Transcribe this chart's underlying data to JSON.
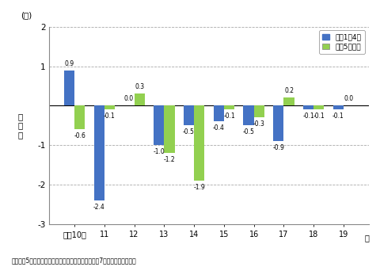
{
  "years": [
    "平成10年",
    "11",
    "12",
    "13",
    "14",
    "15",
    "16",
    "17",
    "18",
    "19"
  ],
  "blue_values": [
    0.9,
    -2.4,
    0.0,
    -1.0,
    -0.5,
    -0.4,
    -0.5,
    -0.9,
    -0.1,
    -0.1
  ],
  "green_values": [
    -0.6,
    -0.1,
    0.3,
    -1.2,
    -1.9,
    -0.1,
    -0.3,
    0.2,
    -0.1,
    0.0
  ],
  "blue_color": "#4472C4",
  "green_color": "#92D050",
  "blue_label": "規樯1～4人",
  "green_label": "規樯5人以上",
  "ylabel": "前\n年\n比",
  "ylabel2": "(％)",
  "xlabel_suffix": "年",
  "ylim_min": -3,
  "ylim_max": 2,
  "yticks": [
    -3,
    -2,
    -1,
    0,
    1,
    2
  ],
  "footnote": "注：規樯5人以上は、毎月勤労統計調査全国調査各年7月分の結果である。",
  "bar_width": 0.35,
  "background_color": "#ffffff",
  "grid_color": "#aaaaaa"
}
